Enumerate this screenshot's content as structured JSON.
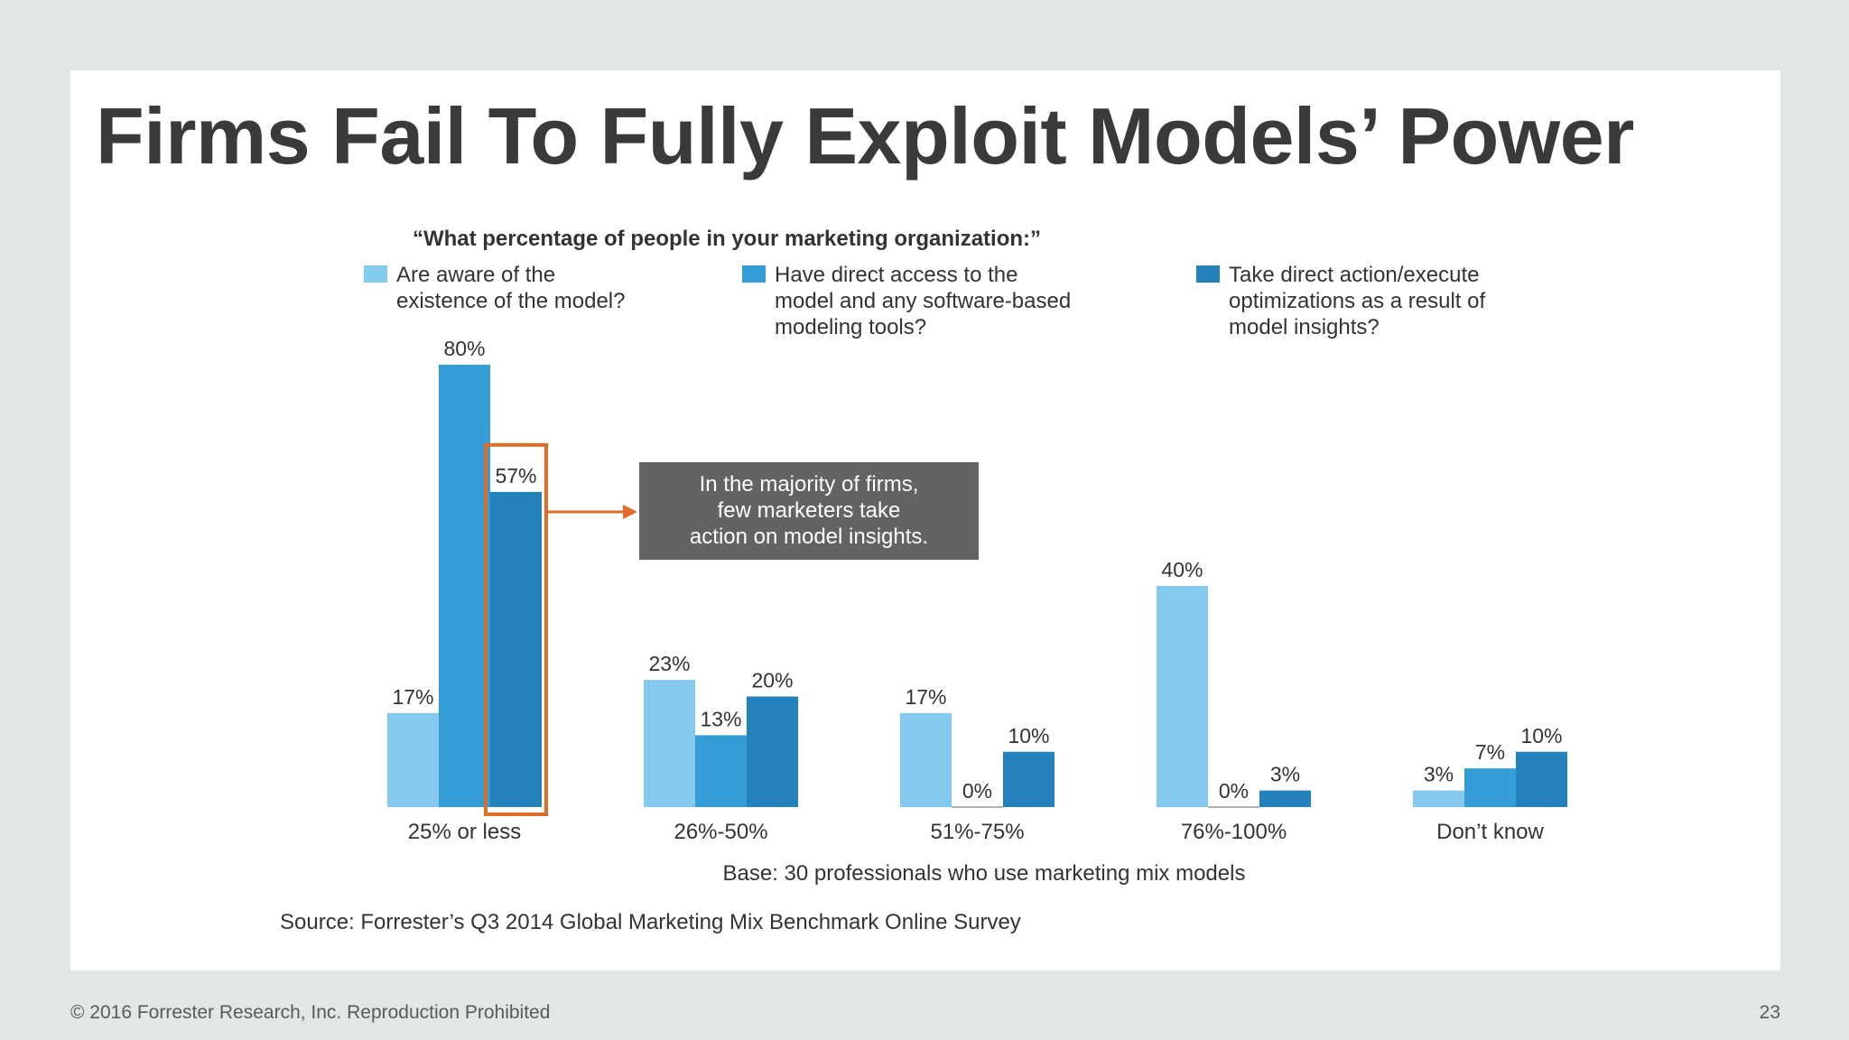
{
  "slide": {
    "title": "Firms Fail To Fully Exploit Models’ Power",
    "footer_copyright": "© 2016 Forrester Research, Inc. Reproduction Prohibited",
    "page_number": "23"
  },
  "chart_data": {
    "type": "bar",
    "title": "“What percentage of people in your marketing organization:”",
    "categories": [
      "25% or less",
      "26%-50%",
      "51%-75%",
      "76%-100%",
      "Don’t know"
    ],
    "series": [
      {
        "name": "Are aware of the existence of the model?",
        "legend_lines": [
          "Are aware of the",
          "existence of the model?"
        ],
        "color": "#84c9ee",
        "values": [
          17,
          23,
          17,
          40,
          3
        ]
      },
      {
        "name": "Have direct access to the model and any software-based modeling tools?",
        "legend_lines": [
          "Have direct access to the",
          "model and any software-based",
          "modeling tools?"
        ],
        "color": "#359dd6",
        "values": [
          80,
          13,
          0,
          0,
          7
        ]
      },
      {
        "name": "Take direct action/execute optimizations as a result of model insights?",
        "legend_lines": [
          "Take direct action/execute",
          "optimizations as a result of",
          "model insights?"
        ],
        "color": "#2382ba",
        "values": [
          57,
          20,
          10,
          3,
          10
        ]
      }
    ],
    "value_suffix": "%",
    "ylim": [
      0,
      80
    ],
    "grid": false,
    "legend_position": "top",
    "highlight": {
      "category_index": 0,
      "series_index": 2,
      "color": "#e06d27"
    },
    "callout_lines": [
      "In the majority of firms,",
      "few marketers take",
      "action on model insights."
    ],
    "callout_color": "#636366",
    "base_note": "Base: 30 professionals who use marketing mix models",
    "source": "Source: Forrester’s Q3 2014 Global Marketing Mix Benchmark Online Survey"
  }
}
